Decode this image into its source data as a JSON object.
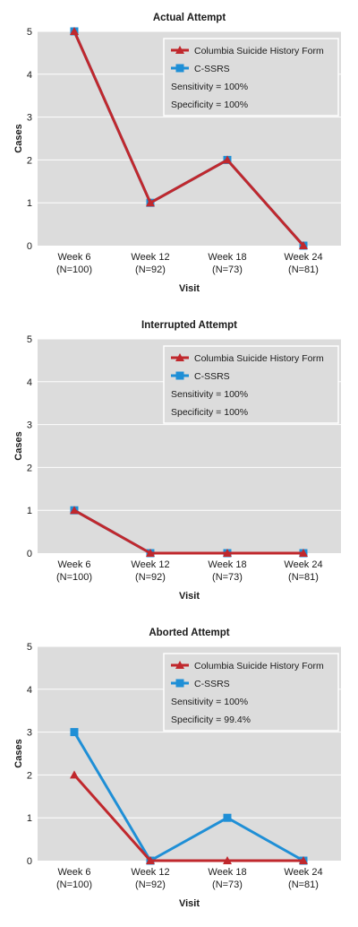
{
  "chart_data": [
    {
      "type": "line",
      "title": "Actual Attempt",
      "xlabel": "Visit",
      "ylabel": "Cases",
      "categories": [
        {
          "line1": "Week 6",
          "line2": "(N=100)"
        },
        {
          "line1": "Week 12",
          "line2": "(N=92)"
        },
        {
          "line1": "Week 18",
          "line2": "(N=73)"
        },
        {
          "line1": "Week 24",
          "line2": "(N=81)"
        }
      ],
      "ylim": [
        0,
        5
      ],
      "yticks": [
        "0",
        "1",
        "2",
        "3",
        "4",
        "5"
      ],
      "grid": true,
      "legend_position": "top-right",
      "series": [
        {
          "name": "Columbia Suicide History Form",
          "marker": "triangle",
          "color": "#c0282d",
          "values": [
            5,
            1,
            2,
            0
          ]
        },
        {
          "name": "C-SSRS",
          "marker": "square",
          "color": "#1f8fd6",
          "values": [
            5,
            1,
            2,
            0
          ]
        }
      ],
      "annotations": [
        "Sensitivity = 100%",
        "Specificity = 100%"
      ]
    },
    {
      "type": "line",
      "title": "Interrupted Attempt",
      "xlabel": "Visit",
      "ylabel": "Cases",
      "categories": [
        {
          "line1": "Week 6",
          "line2": "(N=100)"
        },
        {
          "line1": "Week 12",
          "line2": "(N=92)"
        },
        {
          "line1": "Week 18",
          "line2": "(N=73)"
        },
        {
          "line1": "Week 24",
          "line2": "(N=81)"
        }
      ],
      "ylim": [
        0,
        5
      ],
      "yticks": [
        "0",
        "1",
        "2",
        "3",
        "4",
        "5"
      ],
      "grid": true,
      "legend_position": "top-right",
      "series": [
        {
          "name": "Columbia Suicide History Form",
          "marker": "triangle",
          "color": "#c0282d",
          "values": [
            1,
            0,
            0,
            0
          ]
        },
        {
          "name": "C-SSRS",
          "marker": "square",
          "color": "#1f8fd6",
          "values": [
            1,
            0,
            0,
            0
          ]
        }
      ],
      "annotations": [
        "Sensitivity = 100%",
        "Specificity = 100%"
      ]
    },
    {
      "type": "line",
      "title": "Aborted Attempt",
      "xlabel": "Visit",
      "ylabel": "Cases",
      "categories": [
        {
          "line1": "Week 6",
          "line2": "(N=100)"
        },
        {
          "line1": "Week 12",
          "line2": "(N=92)"
        },
        {
          "line1": "Week 18",
          "line2": "(N=73)"
        },
        {
          "line1": "Week 24",
          "line2": "(N=81)"
        }
      ],
      "ylim": [
        0,
        5
      ],
      "yticks": [
        "0",
        "1",
        "2",
        "3",
        "4",
        "5"
      ],
      "grid": true,
      "legend_position": "top-right",
      "series": [
        {
          "name": "Columbia Suicide History Form",
          "marker": "triangle",
          "color": "#c0282d",
          "values": [
            2,
            0,
            0,
            0
          ]
        },
        {
          "name": "C-SSRS",
          "marker": "square",
          "color": "#1f8fd6",
          "values": [
            3,
            0,
            1,
            0
          ]
        }
      ],
      "annotations": [
        "Sensitivity = 100%",
        "Specificity = 99.4%"
      ]
    }
  ],
  "colors": {
    "plot_background": "#dcdcdc",
    "gridline": "#ffffff",
    "legend_border": "#ffffff"
  }
}
